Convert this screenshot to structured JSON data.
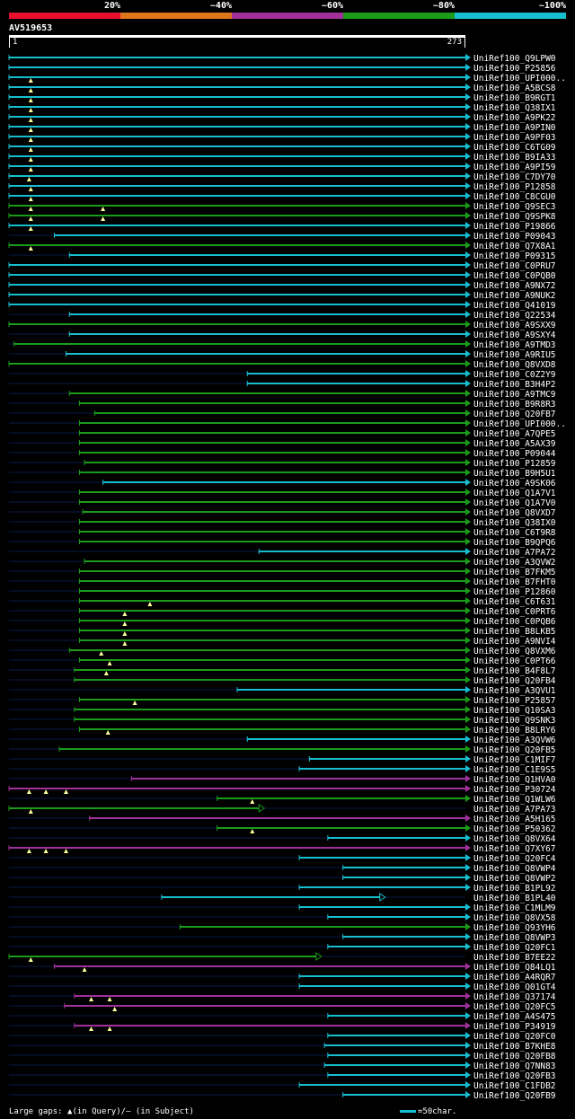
{
  "query": {
    "id": "AV519653",
    "length": 273,
    "start_label": "1",
    "end_label": "273"
  },
  "legend": [
    {
      "label": "20%",
      "color": "#e8102e"
    },
    {
      "label": "~40%",
      "color": "#e0761a"
    },
    {
      "label": "~60%",
      "color": "#a0309a"
    },
    {
      "label": "~80%",
      "color": "#1a9c1a"
    },
    {
      "label": "~100%",
      "color": "#17becf"
    }
  ],
  "footer": {
    "gap_legend_prefix": "Large gaps:",
    "gap_legend_query": "(in Query)",
    "gap_legend_sep": "/",
    "gap_legend_dash": "–",
    "gap_legend_subject": "(in Subject)",
    "scale_text": "=50char."
  },
  "chart_data": {
    "type": "alignment_overview",
    "x_axis": {
      "min": 1,
      "max": 273,
      "unit": "query residue"
    },
    "legend_thresholds": [
      "20%",
      "~40%",
      "~60%",
      "~80%",
      "~100%"
    ],
    "hits": [
      {
        "id": "UniRef100_Q9LPW0",
        "start": 1,
        "end": 273,
        "identity": "~100%",
        "q_gaps": [],
        "arrow": "filled"
      },
      {
        "id": "UniRef100_P25856",
        "start": 1,
        "end": 273,
        "identity": "~100%",
        "q_gaps": [],
        "arrow": "filled"
      },
      {
        "id": "UniRef100_UPI000..",
        "start": 1,
        "end": 273,
        "identity": "~100%",
        "q_gaps": [
          14
        ],
        "arrow": "filled"
      },
      {
        "id": "UniRef100_A5BCS8",
        "start": 1,
        "end": 273,
        "identity": "~100%",
        "q_gaps": [
          14
        ],
        "arrow": "filled"
      },
      {
        "id": "UniRef100_B9RGT1",
        "start": 1,
        "end": 273,
        "identity": "~100%",
        "q_gaps": [
          14
        ],
        "arrow": "filled"
      },
      {
        "id": "UniRef100_Q38IX1",
        "start": 1,
        "end": 273,
        "identity": "~100%",
        "q_gaps": [
          14
        ],
        "arrow": "filled"
      },
      {
        "id": "UniRef100_A9PK22",
        "start": 1,
        "end": 273,
        "identity": "~100%",
        "q_gaps": [
          14
        ],
        "arrow": "filled"
      },
      {
        "id": "UniRef100_A9PIN0",
        "start": 1,
        "end": 273,
        "identity": "~100%",
        "q_gaps": [
          14
        ],
        "arrow": "filled"
      },
      {
        "id": "UniRef100_A9PF03",
        "start": 1,
        "end": 273,
        "identity": "~100%",
        "q_gaps": [
          14
        ],
        "arrow": "filled"
      },
      {
        "id": "UniRef100_C6TG09",
        "start": 1,
        "end": 273,
        "identity": "~100%",
        "q_gaps": [
          14
        ],
        "arrow": "filled"
      },
      {
        "id": "UniRef100_B9IA33",
        "start": 1,
        "end": 273,
        "identity": "~100%",
        "q_gaps": [
          14
        ],
        "arrow": "filled"
      },
      {
        "id": "UniRef100_A9PI59",
        "start": 1,
        "end": 273,
        "identity": "~100%",
        "q_gaps": [
          14
        ],
        "arrow": "filled"
      },
      {
        "id": "UniRef100_C7DY70",
        "start": 1,
        "end": 273,
        "identity": "~100%",
        "q_gaps": [
          13
        ],
        "arrow": "filled"
      },
      {
        "id": "UniRef100_P12858",
        "start": 1,
        "end": 273,
        "identity": "~100%",
        "q_gaps": [
          14
        ],
        "arrow": "filled"
      },
      {
        "id": "UniRef100_C8CGU0",
        "start": 1,
        "end": 273,
        "identity": "~100%",
        "q_gaps": [
          14
        ],
        "arrow": "filled"
      },
      {
        "id": "UniRef100_Q9SEC3",
        "start": 1,
        "end": 273,
        "identity": "~80%",
        "q_gaps": [
          14,
          57
        ],
        "arrow": "filled"
      },
      {
        "id": "UniRef100_Q9SPK8",
        "start": 1,
        "end": 273,
        "identity": "~80%",
        "q_gaps": [
          14,
          57
        ],
        "arrow": "filled"
      },
      {
        "id": "UniRef100_P19866",
        "start": 1,
        "end": 273,
        "identity": "~100%",
        "q_gaps": [
          14
        ],
        "arrow": "filled"
      },
      {
        "id": "UniRef100_P09043",
        "start": 28,
        "end": 273,
        "identity": "~100%",
        "q_gaps": [],
        "arrow": "filled"
      },
      {
        "id": "UniRef100_Q7X8A1",
        "start": 1,
        "end": 273,
        "identity": "~80%",
        "q_gaps": [
          14
        ],
        "arrow": "filled"
      },
      {
        "id": "UniRef100_P09315",
        "start": 37,
        "end": 273,
        "identity": "~100%",
        "q_gaps": [],
        "arrow": "filled"
      },
      {
        "id": "UniRef100_C0PRU7",
        "start": 1,
        "end": 273,
        "identity": "~100%",
        "q_gaps": [],
        "arrow": "filled"
      },
      {
        "id": "UniRef100_C0PQB0",
        "start": 1,
        "end": 273,
        "identity": "~100%",
        "q_gaps": [],
        "arrow": "filled"
      },
      {
        "id": "UniRef100_A9NX72",
        "start": 1,
        "end": 273,
        "identity": "~100%",
        "q_gaps": [],
        "arrow": "filled"
      },
      {
        "id": "UniRef100_A9NUK2",
        "start": 1,
        "end": 273,
        "identity": "~100%",
        "q_gaps": [],
        "arrow": "filled"
      },
      {
        "id": "UniRef100_Q41019",
        "start": 1,
        "end": 273,
        "identity": "~100%",
        "q_gaps": [],
        "arrow": "filled"
      },
      {
        "id": "UniRef100_Q22534",
        "start": 37,
        "end": 273,
        "identity": "~100%",
        "q_gaps": [],
        "arrow": "filled"
      },
      {
        "id": "UniRef100_A9SXX9",
        "start": 1,
        "end": 273,
        "identity": "~80%",
        "q_gaps": [],
        "arrow": "filled"
      },
      {
        "id": "UniRef100_A9SXY4",
        "start": 37,
        "end": 273,
        "identity": "~100%",
        "q_gaps": [],
        "arrow": "filled"
      },
      {
        "id": "UniRef100_A9TMD3",
        "start": 4,
        "end": 273,
        "identity": "~80%",
        "q_gaps": [],
        "arrow": "filled"
      },
      {
        "id": "UniRef100_A9RIU5",
        "start": 35,
        "end": 273,
        "identity": "~100%",
        "q_gaps": [],
        "arrow": "filled"
      },
      {
        "id": "UniRef100_Q8VXD8",
        "start": 1,
        "end": 273,
        "identity": "~80%",
        "q_gaps": [],
        "arrow": "filled"
      },
      {
        "id": "UniRef100_C0Z2Y9",
        "start": 143,
        "end": 273,
        "identity": "~100%",
        "q_gaps": [],
        "arrow": "filled"
      },
      {
        "id": "UniRef100_B3H4P2",
        "start": 143,
        "end": 273,
        "identity": "~100%",
        "q_gaps": [],
        "arrow": "filled"
      },
      {
        "id": "UniRef100_A9TMC9",
        "start": 37,
        "end": 273,
        "identity": "~80%",
        "q_gaps": [],
        "arrow": "filled"
      },
      {
        "id": "UniRef100_B9R8R3",
        "start": 43,
        "end": 273,
        "identity": "~80%",
        "q_gaps": [],
        "arrow": "filled"
      },
      {
        "id": "UniRef100_Q20FB7",
        "start": 52,
        "end": 273,
        "identity": "~80%",
        "q_gaps": [],
        "arrow": "filled"
      },
      {
        "id": "UniRef100_UPI000..",
        "start": 43,
        "end": 273,
        "identity": "~80%",
        "q_gaps": [],
        "arrow": "filled"
      },
      {
        "id": "UniRef100_A7QPE5",
        "start": 43,
        "end": 273,
        "identity": "~80%",
        "q_gaps": [],
        "arrow": "filled"
      },
      {
        "id": "UniRef100_A5AX39",
        "start": 43,
        "end": 273,
        "identity": "~80%",
        "q_gaps": [],
        "arrow": "filled"
      },
      {
        "id": "UniRef100_P09044",
        "start": 43,
        "end": 273,
        "identity": "~80%",
        "q_gaps": [],
        "arrow": "filled"
      },
      {
        "id": "UniRef100_P12859",
        "start": 46,
        "end": 273,
        "identity": "~80%",
        "q_gaps": [],
        "arrow": "filled"
      },
      {
        "id": "UniRef100_B9H5U1",
        "start": 43,
        "end": 273,
        "identity": "~80%",
        "q_gaps": [],
        "arrow": "filled"
      },
      {
        "id": "UniRef100_A9SK06",
        "start": 57,
        "end": 273,
        "identity": "~100%",
        "q_gaps": [],
        "arrow": "filled"
      },
      {
        "id": "UniRef100_Q1A7V1",
        "start": 43,
        "end": 273,
        "identity": "~80%",
        "q_gaps": [],
        "arrow": "filled"
      },
      {
        "id": "UniRef100_Q1A7V0",
        "start": 43,
        "end": 273,
        "identity": "~80%",
        "q_gaps": [],
        "arrow": "filled"
      },
      {
        "id": "UniRef100_Q8VXD7",
        "start": 45,
        "end": 273,
        "identity": "~80%",
        "q_gaps": [],
        "arrow": "filled"
      },
      {
        "id": "UniRef100_Q38IX0",
        "start": 43,
        "end": 273,
        "identity": "~80%",
        "q_gaps": [],
        "arrow": "filled"
      },
      {
        "id": "UniRef100_C6T9R8",
        "start": 43,
        "end": 273,
        "identity": "~80%",
        "q_gaps": [],
        "arrow": "filled"
      },
      {
        "id": "UniRef100_B9QPQ6",
        "start": 43,
        "end": 273,
        "identity": "~80%",
        "q_gaps": [],
        "arrow": "filled"
      },
      {
        "id": "UniRef100_A7PA72",
        "start": 150,
        "end": 273,
        "identity": "~100%",
        "q_gaps": [],
        "arrow": "filled"
      },
      {
        "id": "UniRef100_A3QVW2",
        "start": 46,
        "end": 273,
        "identity": "~80%",
        "q_gaps": [],
        "arrow": "filled"
      },
      {
        "id": "UniRef100_B7FKM5",
        "start": 43,
        "end": 273,
        "identity": "~80%",
        "q_gaps": [],
        "arrow": "filled"
      },
      {
        "id": "UniRef100_B7FHT0",
        "start": 43,
        "end": 273,
        "identity": "~80%",
        "q_gaps": [],
        "arrow": "filled"
      },
      {
        "id": "UniRef100_P12860",
        "start": 43,
        "end": 273,
        "identity": "~80%",
        "q_gaps": [],
        "arrow": "filled"
      },
      {
        "id": "UniRef100_C6T631",
        "start": 43,
        "end": 273,
        "identity": "~80%",
        "q_gaps": [
          85
        ],
        "arrow": "filled"
      },
      {
        "id": "UniRef100_C0PRT6",
        "start": 43,
        "end": 273,
        "identity": "~80%",
        "q_gaps": [
          70
        ],
        "arrow": "filled"
      },
      {
        "id": "UniRef100_C0PQB6",
        "start": 43,
        "end": 273,
        "identity": "~80%",
        "q_gaps": [
          70
        ],
        "arrow": "filled"
      },
      {
        "id": "UniRef100_B8LKB5",
        "start": 43,
        "end": 273,
        "identity": "~80%",
        "q_gaps": [
          70
        ],
        "arrow": "filled"
      },
      {
        "id": "UniRef100_A9NVI4",
        "start": 43,
        "end": 273,
        "identity": "~80%",
        "q_gaps": [
          70
        ],
        "arrow": "filled"
      },
      {
        "id": "UniRef100_Q8VXM6",
        "start": 37,
        "end": 273,
        "identity": "~80%",
        "q_gaps": [
          56
        ],
        "arrow": "filled"
      },
      {
        "id": "UniRef100_C0PT66",
        "start": 43,
        "end": 273,
        "identity": "~80%",
        "q_gaps": [
          61
        ],
        "arrow": "filled"
      },
      {
        "id": "UniRef100_B4F8L7",
        "start": 40,
        "end": 273,
        "identity": "~80%",
        "q_gaps": [
          59
        ],
        "arrow": "filled"
      },
      {
        "id": "UniRef100_Q20FB4",
        "start": 40,
        "end": 273,
        "identity": "~80%",
        "q_gaps": [],
        "arrow": "filled"
      },
      {
        "id": "UniRef100_A3QVU1",
        "start": 137,
        "end": 273,
        "identity": "~100%",
        "q_gaps": [],
        "arrow": "filled"
      },
      {
        "id": "UniRef100_P25857",
        "start": 43,
        "end": 273,
        "identity": "~80%",
        "q_gaps": [
          76
        ],
        "arrow": "filled"
      },
      {
        "id": "UniRef100_Q10SA3",
        "start": 40,
        "end": 273,
        "identity": "~80%",
        "q_gaps": [],
        "arrow": "filled"
      },
      {
        "id": "UniRef100_Q9SNK3",
        "start": 40,
        "end": 273,
        "identity": "~80%",
        "q_gaps": [],
        "arrow": "filled"
      },
      {
        "id": "UniRef100_B8LRY6",
        "start": 43,
        "end": 273,
        "identity": "~80%",
        "q_gaps": [
          60
        ],
        "arrow": "filled"
      },
      {
        "id": "UniRef100_A3QVW6",
        "start": 143,
        "end": 273,
        "identity": "~100%",
        "q_gaps": [],
        "arrow": "filled"
      },
      {
        "id": "UniRef100_Q20FB5",
        "start": 31,
        "end": 273,
        "identity": "~80%",
        "q_gaps": [],
        "arrow": "filled"
      },
      {
        "id": "UniRef100_C1MIF7",
        "start": 180,
        "end": 273,
        "identity": "~100%",
        "q_gaps": [],
        "arrow": "filled"
      },
      {
        "id": "UniRef100_C1E9S5",
        "start": 174,
        "end": 273,
        "identity": "~100%",
        "q_gaps": [],
        "arrow": "filled"
      },
      {
        "id": "UniRef100_Q1HVA0",
        "start": 74,
        "end": 273,
        "identity": "~60%",
        "q_gaps": [],
        "arrow": "filled"
      },
      {
        "id": "UniRef100_P30724",
        "start": 1,
        "end": 273,
        "identity": "~60%",
        "q_gaps": [
          13,
          23,
          35
        ],
        "arrow": "filled"
      },
      {
        "id": "UniRef100_Q1WLW6",
        "start": 125,
        "end": 273,
        "identity": "~80%",
        "q_gaps": [
          146
        ],
        "arrow": "filled"
      },
      {
        "id": "UniRef100_A7PA73",
        "start": 1,
        "end": 150,
        "identity": "~80%",
        "q_gaps": [
          14
        ],
        "arrow": "open"
      },
      {
        "id": "UniRef100_A5H165",
        "start": 49,
        "end": 273,
        "identity": "~60%",
        "q_gaps": [],
        "arrow": "filled"
      },
      {
        "id": "UniRef100_P50362",
        "start": 125,
        "end": 273,
        "identity": "~80%",
        "q_gaps": [
          146
        ],
        "arrow": "filled"
      },
      {
        "id": "UniRef100_Q8VX64",
        "start": 191,
        "end": 273,
        "identity": "~100%",
        "q_gaps": [],
        "arrow": "filled"
      },
      {
        "id": "UniRef100_Q7XY67",
        "start": 1,
        "end": 273,
        "identity": "~60%",
        "q_gaps": [
          13,
          23,
          35
        ],
        "arrow": "filled"
      },
      {
        "id": "UniRef100_Q20FC4",
        "start": 174,
        "end": 273,
        "identity": "~100%",
        "q_gaps": [],
        "arrow": "filled"
      },
      {
        "id": "UniRef100_Q8VWP4",
        "start": 200,
        "end": 273,
        "identity": "~100%",
        "q_gaps": [],
        "arrow": "filled"
      },
      {
        "id": "UniRef100_Q8VWP2",
        "start": 200,
        "end": 273,
        "identity": "~100%",
        "q_gaps": [],
        "arrow": "filled"
      },
      {
        "id": "UniRef100_B1PL92",
        "start": 174,
        "end": 273,
        "identity": "~100%",
        "q_gaps": [],
        "arrow": "filled"
      },
      {
        "id": "UniRef100_B1PL40",
        "start": 92,
        "end": 222,
        "identity": "~100%",
        "q_gaps": [],
        "arrow": "open"
      },
      {
        "id": "UniRef100_C1MLM9",
        "start": 174,
        "end": 273,
        "identity": "~100%",
        "q_gaps": [],
        "arrow": "filled"
      },
      {
        "id": "UniRef100_Q8VX58",
        "start": 191,
        "end": 273,
        "identity": "~100%",
        "q_gaps": [],
        "arrow": "filled"
      },
      {
        "id": "UniRef100_Q93YH6",
        "start": 103,
        "end": 273,
        "identity": "~80%",
        "q_gaps": [],
        "arrow": "filled"
      },
      {
        "id": "UniRef100_Q8VWP3",
        "start": 200,
        "end": 273,
        "identity": "~100%",
        "q_gaps": [],
        "arrow": "filled"
      },
      {
        "id": "UniRef100_Q20FC1",
        "start": 191,
        "end": 273,
        "identity": "~100%",
        "q_gaps": [],
        "arrow": "filled"
      },
      {
        "id": "UniRef100_B7EE22",
        "start": 1,
        "end": 184,
        "identity": "~80%",
        "q_gaps": [
          14
        ],
        "arrow": "open"
      },
      {
        "id": "UniRef100_Q84LQ1",
        "start": 28,
        "end": 273,
        "identity": "~60%",
        "q_gaps": [
          46
        ],
        "arrow": "filled"
      },
      {
        "id": "UniRef100_A4RQR7",
        "start": 174,
        "end": 273,
        "identity": "~100%",
        "q_gaps": [],
        "arrow": "filled"
      },
      {
        "id": "UniRef100_Q01GT4",
        "start": 174,
        "end": 273,
        "identity": "~100%",
        "q_gaps": [],
        "arrow": "filled"
      },
      {
        "id": "UniRef100_Q37174",
        "start": 40,
        "end": 273,
        "identity": "~60%",
        "q_gaps": [
          50,
          61
        ],
        "arrow": "filled"
      },
      {
        "id": "UniRef100_Q20FC5",
        "start": 34,
        "end": 273,
        "identity": "~60%",
        "q_gaps": [
          64
        ],
        "arrow": "filled"
      },
      {
        "id": "UniRef100_A4S475",
        "start": 191,
        "end": 273,
        "identity": "~100%",
        "q_gaps": [],
        "arrow": "filled"
      },
      {
        "id": "UniRef100_P34919",
        "start": 40,
        "end": 273,
        "identity": "~60%",
        "q_gaps": [
          50,
          61
        ],
        "arrow": "filled"
      },
      {
        "id": "UniRef100_Q20FC0",
        "start": 191,
        "end": 273,
        "identity": "~100%",
        "q_gaps": [],
        "arrow": "filled"
      },
      {
        "id": "UniRef100_B7KHE8",
        "start": 189,
        "end": 273,
        "identity": "~100%",
        "q_gaps": [],
        "arrow": "filled"
      },
      {
        "id": "UniRef100_Q20FB8",
        "start": 191,
        "end": 273,
        "identity": "~100%",
        "q_gaps": [],
        "arrow": "filled"
      },
      {
        "id": "UniRef100_Q7NN83",
        "start": 189,
        "end": 273,
        "identity": "~100%",
        "q_gaps": [],
        "arrow": "filled"
      },
      {
        "id": "UniRef100_Q20FB3",
        "start": 191,
        "end": 273,
        "identity": "~100%",
        "q_gaps": [],
        "arrow": "filled"
      },
      {
        "id": "UniRef100_C1FDB2",
        "start": 174,
        "end": 273,
        "identity": "~100%",
        "q_gaps": [],
        "arrow": "filled"
      },
      {
        "id": "UniRef100_Q20FB9",
        "start": 200,
        "end": 273,
        "identity": "~100%",
        "q_gaps": [],
        "arrow": "filled"
      }
    ]
  }
}
